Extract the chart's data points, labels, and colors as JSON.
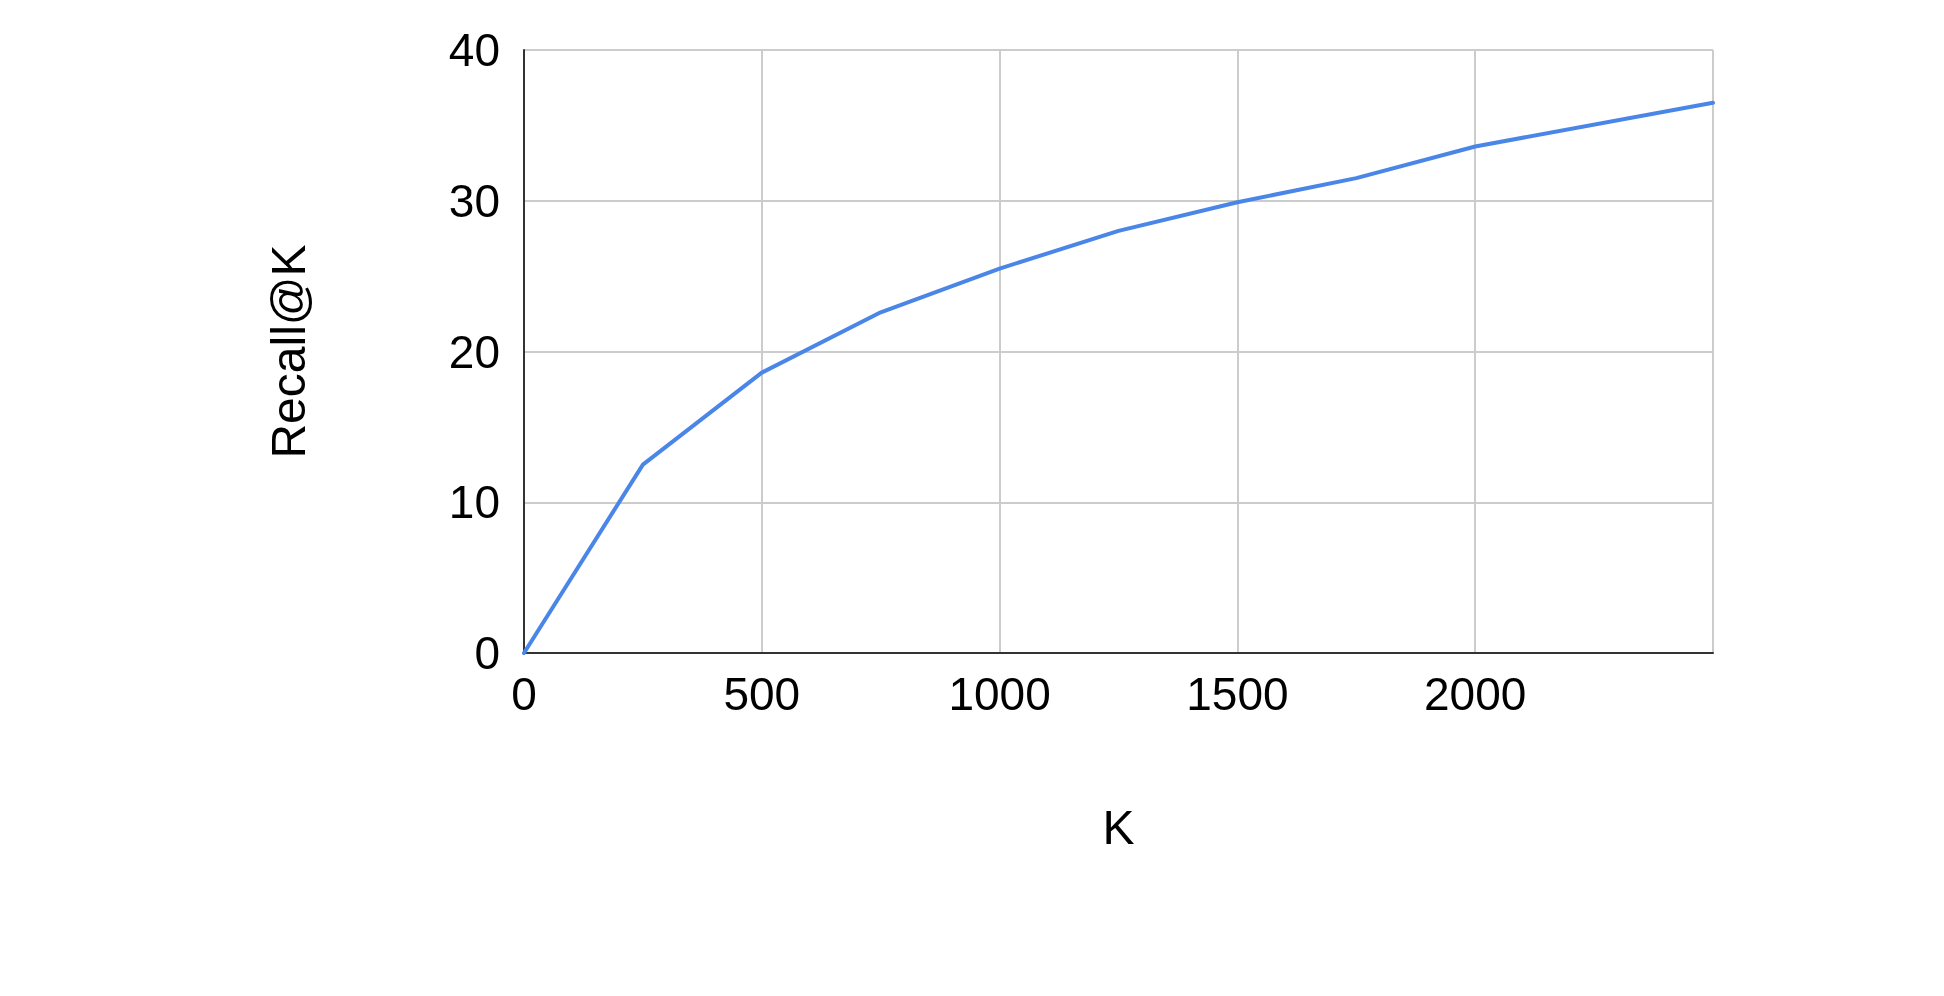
{
  "chart_data": {
    "type": "line",
    "xlabel": "K",
    "ylabel": "Recall@K",
    "x": [
      0,
      250,
      500,
      750,
      1000,
      1250,
      1500,
      1750,
      2000,
      2500
    ],
    "series": [
      {
        "color": "#4a86e8",
        "values": [
          0,
          12.5,
          18.6,
          22.6,
          25.5,
          28.0,
          29.9,
          31.5,
          33.6,
          36.5
        ]
      }
    ],
    "xlim": [
      0,
      2500
    ],
    "xticks": [
      0,
      500,
      1000,
      1500,
      2000,
      {
        "value": 2500,
        "label": null
      }
    ],
    "ylim": [
      0,
      40
    ],
    "yticks": [
      0,
      10,
      20,
      30,
      40
    ],
    "grid": true,
    "marker": "none",
    "line_style": "solid"
  }
}
